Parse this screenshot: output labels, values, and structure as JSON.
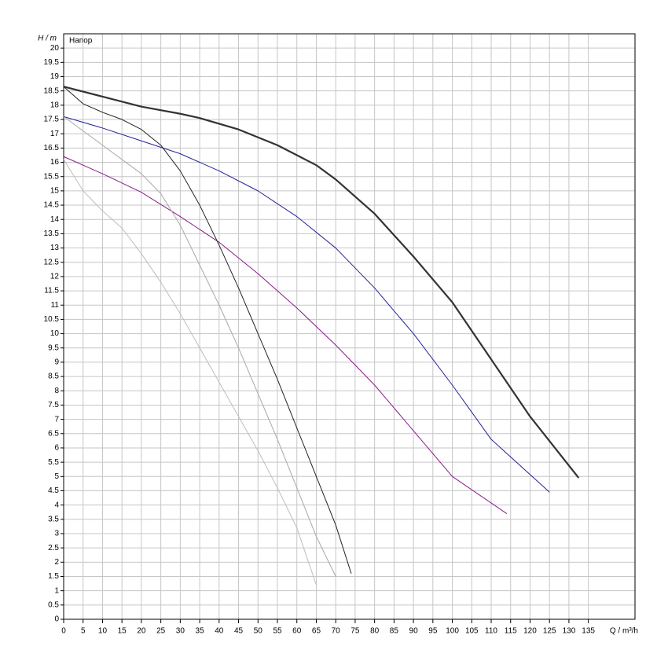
{
  "chart_data": {
    "type": "line",
    "legend_text": "Напор",
    "y_label": "H / m",
    "x_label": "Q / m³/h",
    "xlim": [
      0,
      147
    ],
    "ylim": [
      0,
      20.5
    ],
    "xticks": [
      0,
      5,
      10,
      15,
      20,
      25,
      30,
      35,
      40,
      45,
      50,
      55,
      60,
      65,
      70,
      75,
      80,
      85,
      90,
      95,
      100,
      105,
      110,
      115,
      120,
      125,
      130,
      135
    ],
    "yticks": [
      0,
      0.5,
      1,
      1.5,
      2,
      2.5,
      3,
      3.5,
      4,
      4.5,
      5,
      5.5,
      6,
      6.5,
      7,
      7.5,
      8,
      8.5,
      9,
      9.5,
      10,
      10.5,
      11,
      11.5,
      12,
      12.5,
      13,
      13.5,
      14,
      14.5,
      15,
      15.5,
      16,
      16.5,
      17,
      17.5,
      18,
      18.5,
      19,
      19.5,
      20
    ],
    "grid": true,
    "series": [
      {
        "color": "#333333",
        "line_width": 2.2,
        "x": [
          0,
          10,
          20,
          30,
          35,
          45,
          55,
          65,
          70,
          80,
          90,
          100,
          110,
          120,
          132.5
        ],
        "values": [
          18.65,
          18.3,
          17.95,
          17.7,
          17.55,
          17.15,
          16.6,
          15.9,
          15.4,
          14.2,
          12.7,
          11.1,
          9.1,
          7.1,
          4.95
        ]
      },
      {
        "color": "#22229a",
        "line_width": 1,
        "x": [
          0,
          10,
          20,
          30,
          40,
          50,
          60,
          70,
          80,
          90,
          100,
          110,
          125
        ],
        "values": [
          17.6,
          17.2,
          16.75,
          16.3,
          15.7,
          15,
          14.1,
          13,
          11.6,
          10,
          8.2,
          6.3,
          4.45
        ]
      },
      {
        "color": "#8b1a8b",
        "line_width": 1,
        "x": [
          0,
          10,
          20,
          30,
          40,
          50,
          60,
          70,
          80,
          90,
          100,
          114
        ],
        "values": [
          16.2,
          15.6,
          14.95,
          14.1,
          13.2,
          12.1,
          10.9,
          9.6,
          8.2,
          6.6,
          5,
          3.7
        ]
      },
      {
        "color": "#222222",
        "line_width": 1,
        "x": [
          0,
          5,
          10,
          15,
          20,
          25,
          30,
          35,
          40,
          45,
          50,
          55,
          60,
          65,
          70,
          74
        ],
        "values": [
          18.65,
          18.05,
          17.75,
          17.5,
          17.15,
          16.6,
          15.7,
          14.5,
          13.1,
          11.6,
          10,
          8.4,
          6.7,
          5,
          3.3,
          1.6
        ]
      },
      {
        "color": "#a8a8a8",
        "line_width": 1,
        "x": [
          0,
          10,
          20,
          25,
          30,
          35,
          40,
          45,
          50,
          55,
          60,
          65,
          70
        ],
        "values": [
          17.6,
          16.6,
          15.6,
          14.9,
          13.8,
          12.4,
          11,
          9.5,
          7.9,
          6.3,
          4.6,
          2.9,
          1.5
        ]
      },
      {
        "color": "#bdbdbd",
        "line_width": 1,
        "x": [
          0,
          5,
          10,
          15,
          20,
          25,
          30,
          35,
          40,
          45,
          50,
          55,
          60,
          65
        ],
        "values": [
          16.1,
          15,
          14.3,
          13.7,
          12.8,
          11.8,
          10.7,
          9.5,
          8.3,
          7.1,
          5.9,
          4.6,
          3.2,
          1.2
        ]
      }
    ]
  }
}
